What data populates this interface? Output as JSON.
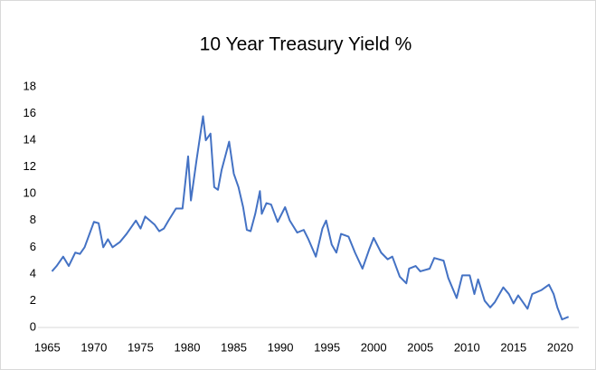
{
  "chart_data": {
    "type": "line",
    "title": "10 Year Treasury Yield %",
    "x": [
      1965.5,
      1966,
      1966.7,
      1967.3,
      1968,
      1968.5,
      1969,
      1970,
      1970.5,
      1971,
      1971.5,
      1972,
      1972.8,
      1973.5,
      1974.5,
      1975,
      1975.5,
      1976.5,
      1977,
      1977.5,
      1978,
      1978.8,
      1979.5,
      1980.1,
      1980.4,
      1980.7,
      1981,
      1981.7,
      1982,
      1982.5,
      1982.9,
      1983.3,
      1983.7,
      1984.5,
      1985,
      1985.5,
      1986,
      1986.4,
      1986.8,
      1987.3,
      1987.8,
      1988,
      1988.5,
      1989,
      1989.7,
      1990.5,
      1991,
      1991.8,
      1992.5,
      1993,
      1993.8,
      1994.5,
      1994.9,
      1995.5,
      1996,
      1996.5,
      1997.3,
      1998,
      1998.8,
      1999.5,
      2000,
      2000.8,
      2001.5,
      2002,
      2002.8,
      2003.5,
      2003.8,
      2004.5,
      2005,
      2006,
      2006.5,
      2007.5,
      2008,
      2008.9,
      2009.5,
      2010.3,
      2010.8,
      2011.2,
      2011.9,
      2012.5,
      2013,
      2013.9,
      2014.5,
      2015,
      2015.5,
      2016.5,
      2017,
      2018,
      2018.8,
      2019.3,
      2019.7,
      2020.2,
      2020.9
    ],
    "series": [
      {
        "name": "10 Year Treasury Yield",
        "color": "#4472c4",
        "values": [
          4.2,
          4.6,
          5.3,
          4.6,
          5.6,
          5.5,
          6.0,
          7.9,
          7.8,
          6.0,
          6.6,
          6.0,
          6.4,
          7.0,
          8.0,
          7.4,
          8.3,
          7.7,
          7.2,
          7.4,
          8.0,
          8.9,
          8.9,
          12.8,
          9.5,
          11.0,
          12.5,
          15.8,
          14.0,
          14.5,
          10.5,
          10.3,
          11.8,
          13.9,
          11.5,
          10.5,
          9.0,
          7.3,
          7.2,
          8.5,
          10.2,
          8.5,
          9.3,
          9.2,
          7.9,
          9.0,
          8.0,
          7.1,
          7.3,
          6.6,
          5.3,
          7.4,
          8.0,
          6.2,
          5.6,
          7.0,
          6.8,
          5.6,
          4.4,
          5.8,
          6.7,
          5.6,
          5.1,
          5.3,
          3.8,
          3.3,
          4.4,
          4.6,
          4.2,
          4.4,
          5.2,
          5.0,
          3.7,
          2.2,
          3.9,
          3.9,
          2.5,
          3.6,
          2.0,
          1.5,
          1.9,
          3.0,
          2.5,
          1.8,
          2.4,
          1.4,
          2.5,
          2.8,
          3.2,
          2.5,
          1.5,
          0.6,
          0.8
        ]
      }
    ],
    "xlim": [
      1964,
      2022
    ],
    "xticks": [
      1965,
      1970,
      1975,
      1980,
      1985,
      1990,
      1995,
      2000,
      2005,
      2010,
      2015,
      2020
    ],
    "ylim": [
      0,
      18
    ],
    "yticks": [
      0,
      2,
      4,
      6,
      8,
      10,
      12,
      14,
      16,
      18
    ]
  }
}
